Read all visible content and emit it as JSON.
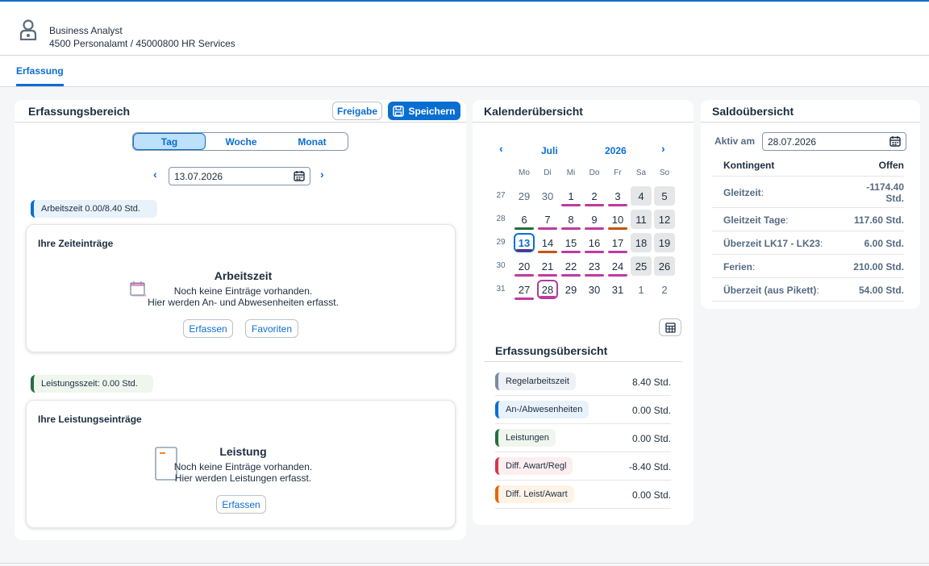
{
  "header": {
    "name": "Business Analyst",
    "org": "4500 Personalamt / 45000800 HR Services"
  },
  "tabs": [
    {
      "label": "Erfassung"
    }
  ],
  "erfassungsbereich": {
    "title": "Erfassungsbereich",
    "freigabe_label": "Freigabe",
    "speichern_label": "Speichern",
    "segments": [
      "Tag",
      "Woche",
      "Monat"
    ],
    "selected_segment": "Tag",
    "date": "13.07.2026",
    "arbeitszeit_tag": "Arbeitszeit 0.00/8.40 Std.",
    "zeit_card": {
      "title": "Ihre Zeiteinträge",
      "heading": "Arbeitszeit",
      "line1": "Noch keine Einträge vorhanden.",
      "line2": "Hier werden An- und Abwesenheiten erfasst.",
      "erfassen_label": "Erfassen",
      "favoriten_label": "Favoriten"
    },
    "leistung_tag": "Leistungsszeit: 0.00 Std.",
    "leistung_card": {
      "title": "Ihre Leistungseinträge",
      "heading": "Leistung",
      "line1": "Noch keine Einträge vorhanden.",
      "line2": "Hier werden Leistungen erfasst.",
      "erfassen_label": "Erfassen"
    }
  },
  "kalender": {
    "title": "Kalenderübersicht",
    "month": "Juli",
    "year": "2026",
    "weekdays": [
      "Mo",
      "Di",
      "Mi",
      "Do",
      "Fr",
      "Sa",
      "So"
    ],
    "weeks": [
      {
        "kw": "27",
        "days": [
          "29",
          "30",
          "1",
          "2",
          "3",
          "4",
          "5"
        ]
      },
      {
        "kw": "28",
        "days": [
          "6",
          "7",
          "8",
          "9",
          "10",
          "11",
          "12"
        ]
      },
      {
        "kw": "29",
        "days": [
          "13",
          "14",
          "15",
          "16",
          "17",
          "18",
          "19"
        ]
      },
      {
        "kw": "30",
        "days": [
          "20",
          "21",
          "22",
          "23",
          "24",
          "25",
          "26"
        ]
      },
      {
        "kw": "31",
        "days": [
          "27",
          "28",
          "29",
          "30",
          "31",
          "1",
          "2"
        ]
      }
    ],
    "colors": {
      "magenta": "#c0399f",
      "green": "#256f3a",
      "orange": "#c35500",
      "purple": "#5b2d86",
      "blue": "#0a6ed1"
    }
  },
  "erfassungsuebersicht": {
    "title": "Erfassungsübersicht",
    "rows": [
      {
        "label": "Regelarbeitszeit",
        "value": "8.40 Std.",
        "color": "#7a8ba6",
        "bg": "#eef1f5"
      },
      {
        "label": "An-/Abwesenheiten",
        "value": "0.00 Std.",
        "color": "#0a6ed1",
        "bg": "#e8f2fb"
      },
      {
        "label": "Leistungen",
        "value": "0.00 Std.",
        "color": "#256f3a",
        "bg": "#eef6ee"
      },
      {
        "label": "Diff. Awart/Regl",
        "value": "-8.40 Std.",
        "color": "#d9364c",
        "bg": "#fdeef0"
      },
      {
        "label": "Diff. Leist/Awart",
        "value": "0.00 Std.",
        "color": "#e76500",
        "bg": "#fff3e6"
      }
    ]
  },
  "saldo": {
    "title": "Saldoübersicht",
    "aktiv_label": "Aktiv am",
    "aktiv_date": "28.07.2026",
    "col_kontingent": "Kontingent",
    "col_offen": "Offen",
    "rows": [
      {
        "label": "Gleitzeit",
        "suffix": ":",
        "value": "-1174.40 Std."
      },
      {
        "label": "Gleitzeit Tage",
        "suffix": ":",
        "value": "117.60 Std."
      },
      {
        "label": "Überzeit LK17 - LK23",
        "suffix": ":",
        "value": "6.00 Std."
      },
      {
        "label": "Ferien",
        "suffix": ":",
        "value": "210.00 Std."
      },
      {
        "label": "Überzeit (aus Pikett)",
        "suffix": ":",
        "value": "54.00 Std."
      }
    ]
  }
}
